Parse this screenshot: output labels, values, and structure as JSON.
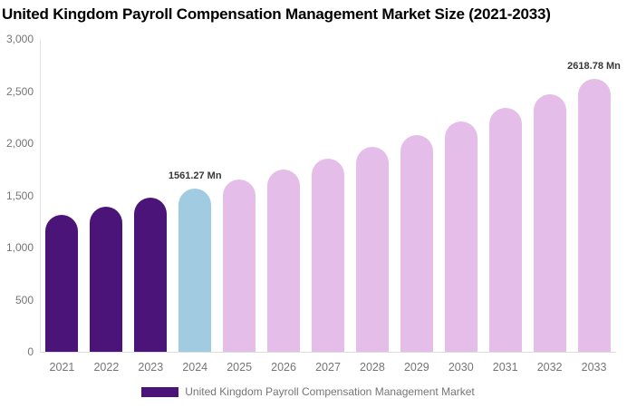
{
  "header": {
    "title": "United Kingdom Payroll Compensation Management Market Size (2021-2033)"
  },
  "legend": {
    "label": "United Kingdom Payroll Compensation Management Market",
    "swatch_color": "#4B1478"
  },
  "colors": {
    "historical_bar": "#4B1478",
    "base_year_bar": "#A1CBE0",
    "forecast_bar": "#E4BDE8",
    "axis_line": "#e3e3e3",
    "axis_text": "#757575",
    "data_label_text": "#383838",
    "title_text": "#000000"
  },
  "chart_data": {
    "type": "bar",
    "title": "United Kingdom Payroll Compensation Management Market Size (2021-2033)",
    "xlabel": "",
    "ylabel": "",
    "ylim": [
      0,
      3000
    ],
    "grid": false,
    "legend_position": "bottom-center",
    "categories": [
      "2021",
      "2022",
      "2023",
      "2024",
      "2025",
      "2026",
      "2027",
      "2028",
      "2029",
      "2030",
      "2031",
      "2032",
      "2033"
    ],
    "values": [
      1314,
      1392,
      1474,
      1561.27,
      1654,
      1752,
      1855,
      1965,
      2081,
      2205,
      2335,
      2473,
      2618.78
    ],
    "bar_roles": [
      "historical",
      "historical",
      "historical",
      "base_year",
      "forecast",
      "forecast",
      "forecast",
      "forecast",
      "forecast",
      "forecast",
      "forecast",
      "forecast",
      "forecast"
    ],
    "y_ticks": [
      {
        "value": 3000,
        "label": "3,000"
      },
      {
        "value": 2500,
        "label": "2,500"
      },
      {
        "value": 2000,
        "label": "2,000"
      },
      {
        "value": 1500,
        "label": "1,500"
      },
      {
        "value": 1000,
        "label": "1,000"
      },
      {
        "value": 500,
        "label": "500"
      },
      {
        "value": 0,
        "label": "0"
      }
    ],
    "data_labels": [
      {
        "category": "2024",
        "text": "1561.27 Mn"
      },
      {
        "category": "2033",
        "text": "2618.78 Mn"
      }
    ],
    "series_name": "United Kingdom Payroll Compensation Management Market"
  }
}
